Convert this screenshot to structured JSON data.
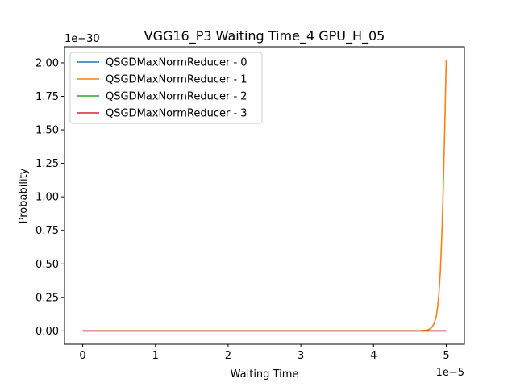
{
  "chart_data": {
    "type": "line",
    "title": "VGG16_P3 Waiting Time_4 GPU_H_05",
    "xlabel": "Waiting Time",
    "ylabel": "Probability",
    "x_offset_label": "1e−5",
    "y_offset_label": "1e−30",
    "x_scale": 1e-05,
    "y_scale": 1e-30,
    "xlim": [
      -0.25,
      5.25
    ],
    "ylim": [
      -0.1,
      2.12
    ],
    "x_ticks": [
      0,
      1,
      2,
      3,
      4,
      5
    ],
    "x_tick_labels": [
      "0",
      "1",
      "2",
      "3",
      "4",
      "5"
    ],
    "y_ticks": [
      0,
      0.25,
      0.5,
      0.75,
      1.0,
      1.25,
      1.5,
      1.75,
      2.0
    ],
    "y_tick_labels": [
      "0.00",
      "0.25",
      "0.50",
      "0.75",
      "1.00",
      "1.25",
      "1.50",
      "1.75",
      "2.00"
    ],
    "grid": false,
    "legend_position": "top-left",
    "series": [
      {
        "name": "QSGDMaxNormReducer - 0",
        "color": "#1f77b4",
        "x": [
          0,
          5
        ],
        "y": [
          0,
          0
        ]
      },
      {
        "name": "QSGDMaxNormReducer - 1",
        "color": "#ff7f0e",
        "x": [
          0,
          4.5,
          4.65,
          4.72,
          4.76,
          4.8,
          4.83,
          4.86,
          4.88,
          4.9,
          4.92,
          4.94,
          4.96,
          4.98,
          5.0
        ],
        "y": [
          0,
          0,
          0.001,
          0.004,
          0.01,
          0.025,
          0.05,
          0.1,
          0.17,
          0.28,
          0.45,
          0.72,
          1.08,
          1.52,
          2.02
        ]
      },
      {
        "name": "QSGDMaxNormReducer - 2",
        "color": "#2ca02c",
        "x": [
          0,
          5
        ],
        "y": [
          0,
          0
        ]
      },
      {
        "name": "QSGDMaxNormReducer - 3",
        "color": "#d62728",
        "x": [
          0,
          5
        ],
        "y": [
          0,
          0
        ]
      }
    ]
  }
}
